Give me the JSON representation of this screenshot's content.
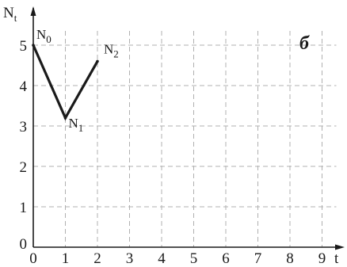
{
  "chart_data": {
    "type": "line",
    "panel_label": "б",
    "y_axis": {
      "name": "N",
      "subscript": "t"
    },
    "x_axis": {
      "name": "t"
    },
    "xlim": [
      0,
      9
    ],
    "ylim": [
      0,
      5
    ],
    "x_ticks": [
      "0",
      "1",
      "2",
      "3",
      "4",
      "5",
      "6",
      "7",
      "8",
      "9"
    ],
    "y_ticks": [
      "0",
      "1",
      "2",
      "3",
      "4",
      "5"
    ],
    "grid": true,
    "series": [
      {
        "points": [
          {
            "x": 0,
            "y": 5.0,
            "label": "N",
            "sub": "0"
          },
          {
            "x": 1,
            "y": 3.2,
            "label": "N",
            "sub": "1"
          },
          {
            "x": 2,
            "y": 4.6,
            "label": "N",
            "sub": "2"
          }
        ]
      }
    ],
    "colors": {
      "line": "#1a1a1a",
      "grid": "#b0b0b0",
      "axis": "#1a1a1a"
    }
  }
}
